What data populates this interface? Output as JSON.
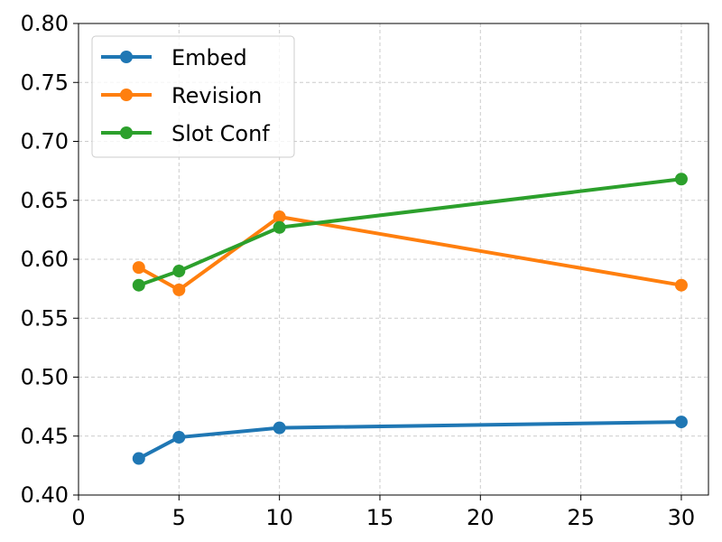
{
  "chart_data": {
    "type": "line",
    "title": "",
    "xlabel": "",
    "ylabel": "",
    "xlim": [
      0,
      31.35
    ],
    "ylim": [
      0.4,
      0.8
    ],
    "x_ticks": [
      0,
      5,
      10,
      15,
      20,
      25,
      30
    ],
    "y_ticks": [
      0.4,
      0.45,
      0.5,
      0.55,
      0.6,
      0.65,
      0.7,
      0.75,
      0.8
    ],
    "x_tick_labels": [
      "0",
      "5",
      "10",
      "15",
      "20",
      "25",
      "30"
    ],
    "y_tick_labels": [
      "0.40",
      "0.45",
      "0.50",
      "0.55",
      "0.60",
      "0.65",
      "0.70",
      "0.75",
      "0.80"
    ],
    "grid": true,
    "legend_position": "top-left",
    "x": [
      3,
      5,
      10,
      30
    ],
    "series": [
      {
        "name": "Embed",
        "color": "#1f77b4",
        "values": [
          0.431,
          0.449,
          0.457,
          0.462
        ]
      },
      {
        "name": "Revision",
        "color": "#ff7f0e",
        "values": [
          0.593,
          0.574,
          0.636,
          0.578
        ]
      },
      {
        "name": "Slot Conf",
        "color": "#2ca02c",
        "values": [
          0.578,
          0.59,
          0.627,
          0.668
        ]
      }
    ]
  }
}
